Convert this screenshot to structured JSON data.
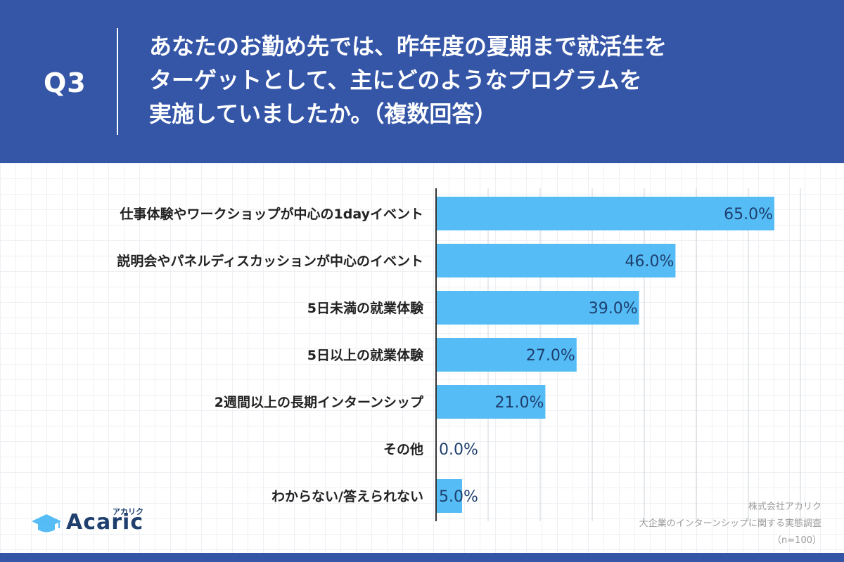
{
  "header": {
    "question_no": "Q3",
    "question_lines": [
      "あなたのお勤め先では、昨年度の夏期まで就活生を",
      "ターゲットとして、主にどのようなプログラムを",
      "実施していましたか。（複数回答）"
    ]
  },
  "colors": {
    "background": "#3556a7",
    "bar": "#55bcf5",
    "value_text": "#1f3f6e"
  },
  "chart_data": {
    "type": "bar",
    "orientation": "horizontal",
    "categories": [
      "仕事体験やワークショップが中心の1dayイベント",
      "説明会やパネルディスカッションが中心のイベント",
      "5日未満の就業体験",
      "5日以上の就業体験",
      "2週間以上の長期インターンシップ",
      "その他",
      "わからない/答えられない"
    ],
    "values": [
      65.0,
      46.0,
      39.0,
      27.0,
      21.0,
      0.0,
      5.0
    ],
    "value_labels": [
      "65.0%",
      "46.0%",
      "39.0%",
      "27.0%",
      "21.0%",
      "0.0%",
      "5.0%"
    ],
    "xlim": [
      0,
      70
    ],
    "grid": true,
    "unit": "%"
  },
  "logo": {
    "kana": "アカリク",
    "word": "Acaric",
    "icon": "graduation-cap-icon"
  },
  "source": {
    "company": "株式会社アカリク",
    "survey": "大企業のインターンシップに関する実態調査",
    "sample": "（n=100）"
  }
}
